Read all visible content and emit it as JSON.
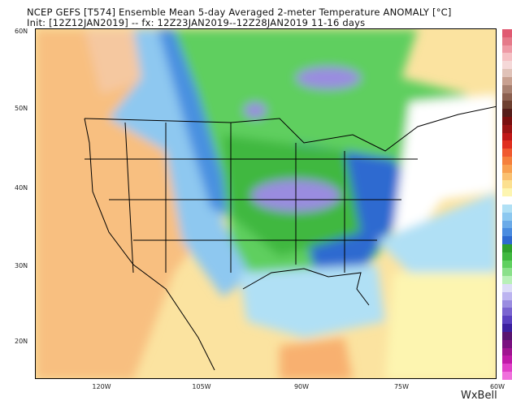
{
  "title": "NCEP GEFS [T574] Ensemble Mean 5-day Averaged 2-meter Temperature ANOMALY [°C]",
  "subtitle": "Init: [12Z12JAN2019] -- fx: 12Z23JAN2019--12Z28JAN2019        11-16 days",
  "lat_labels": [
    "60N",
    "50N",
    "40N",
    "30N",
    "20N"
  ],
  "lon_labels": [
    "120W",
    "105W",
    "90W",
    "75W",
    "60W"
  ],
  "logo": "WxBell",
  "colorbar_colors": [
    "#e05a72",
    "#e57a8a",
    "#ee9aa6",
    "#f5c0c4",
    "#f5d8d8",
    "#e0c2b8",
    "#c8a090",
    "#a88070",
    "#8c6050",
    "#6e4030",
    "#561e1a",
    "#7a1010",
    "#9a1414",
    "#c01818",
    "#e03020",
    "#f05a30",
    "#f5803c",
    "#f8a050",
    "#fac070",
    "#fce090",
    "#fdf5b0",
    "#ffffff",
    "#b0e0f5",
    "#8cc8f0",
    "#6aaae8",
    "#4a8ce0",
    "#2e6ad0",
    "#2ea02e",
    "#40b840",
    "#60d060",
    "#8ae08a",
    "#b8f0b8",
    "#dcdcf8",
    "#bcb4f0",
    "#9a8ce0",
    "#7a64d0",
    "#5a40c0",
    "#3c20a0",
    "#5a1470",
    "#7a1080",
    "#a01490",
    "#c01aa8",
    "#e040c8",
    "#f070dc"
  ]
}
